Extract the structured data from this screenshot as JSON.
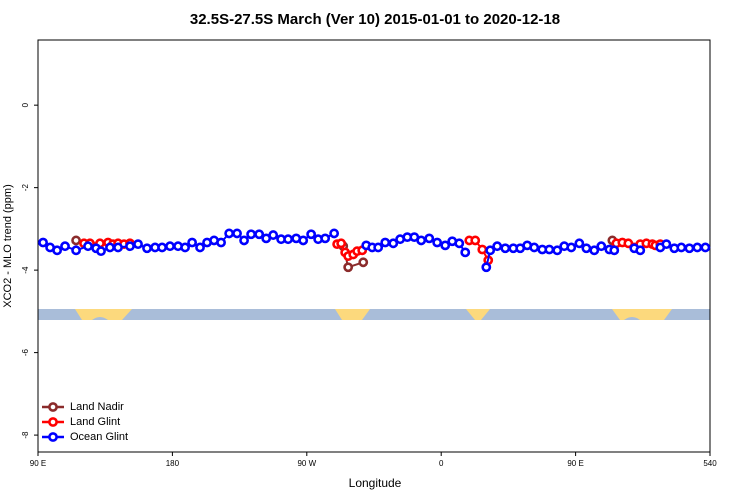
{
  "chart_data": {
    "type": "line",
    "title": "32.5S-27.5S March (Ver 10)   2015-01-01 to 2020-12-18",
    "x_label": "Longitude",
    "y_label": "XCO2 - MLO trend (ppm)",
    "xlim": [
      90,
      540
    ],
    "ylim": [
      -8.41,
      1.58
    ],
    "xticks": [
      {
        "value": 90,
        "label": "90 E"
      },
      180,
      {
        "value": 270,
        "label": "90 W"
      },
      {
        "value": 360,
        "label": "0"
      },
      {
        "value": 450,
        "label": "90 E"
      },
      540
    ],
    "yticks": [
      0,
      -2,
      -4,
      -6,
      -8
    ],
    "legend": "bottom-left",
    "series": [
      {
        "name": "Land Nadir",
        "color": "#8b2b2b",
        "x": [
          115.5,
          null,
          294.4,
          297.7,
          307.8,
          null,
          474.6
        ],
        "values": [
          -3.28,
          null,
          -3.42,
          -3.93,
          -3.81,
          null,
          -3.28
        ]
      },
      {
        "name": "Land Glint",
        "color": "#ff0000",
        "x": [
          120.8,
          124.8,
          131.5,
          136.9,
          140.2,
          143.6,
          147.6,
          151.6,
          null,
          290.3,
          293.0,
          295.7,
          297.7,
          301.1,
          303.7,
          307.1,
          null,
          378.8,
          382.8,
          387.5,
          391.5,
          null,
          477.3,
          481.3,
          485.3,
          493.3,
          497.4,
          501.4,
          503.4,
          506.7
        ],
        "values": [
          -3.35,
          -3.35,
          -3.35,
          -3.33,
          -3.37,
          -3.35,
          -3.37,
          -3.35,
          null,
          -3.37,
          -3.35,
          -3.57,
          -3.66,
          -3.62,
          -3.54,
          -3.52,
          null,
          -3.28,
          -3.28,
          -3.5,
          -3.76,
          null,
          -3.35,
          -3.33,
          -3.35,
          -3.37,
          -3.35,
          -3.37,
          -3.4,
          -3.37
        ]
      },
      {
        "name": "Ocean Glint",
        "color": "#0000ff",
        "x": [
          93.4,
          98.1,
          102.8,
          108.1,
          115.5,
          123.5,
          128.9,
          132.2,
          138.2,
          143.6,
          151.6,
          157.0,
          163.0,
          168.4,
          173.1,
          178.4,
          183.8,
          188.5,
          193.2,
          198.5,
          203.2,
          207.9,
          212.6,
          218.0,
          223.3,
          228.0,
          232.7,
          238.1,
          242.8,
          247.5,
          252.8,
          257.5,
          262.9,
          267.6,
          272.9,
          277.6,
          282.3,
          288.3,
          null,
          309.8,
          313.8,
          317.8,
          322.5,
          327.9,
          332.5,
          337.3,
          342.0,
          346.6,
          352.0,
          357.3,
          362.7,
          367.4,
          372.1,
          376.1,
          null,
          390.2,
          392.8,
          397.5,
          402.9,
          408.3,
          412.9,
          417.6,
          422.3,
          427.7,
          432.4,
          437.7,
          442.4,
          447.1,
          452.5,
          457.2,
          462.5,
          467.2,
          472.6,
          475.9,
          null,
          489.3,
          493.3,
          null,
          506.7,
          510.8,
          516.1,
          520.8,
          526.2,
          531.5,
          536.9
        ],
        "values": [
          -3.33,
          -3.45,
          -3.52,
          -3.42,
          -3.52,
          -3.42,
          -3.47,
          -3.54,
          -3.45,
          -3.45,
          -3.42,
          -3.37,
          -3.47,
          -3.45,
          -3.45,
          -3.42,
          -3.42,
          -3.45,
          -3.33,
          -3.45,
          -3.33,
          -3.28,
          -3.33,
          -3.11,
          -3.11,
          -3.28,
          -3.13,
          -3.13,
          -3.23,
          -3.15,
          -3.25,
          -3.25,
          -3.23,
          -3.28,
          -3.13,
          -3.25,
          -3.23,
          -3.11,
          null,
          -3.4,
          -3.45,
          -3.45,
          -3.33,
          -3.35,
          -3.25,
          -3.2,
          -3.2,
          -3.28,
          -3.23,
          -3.33,
          -3.4,
          -3.3,
          -3.35,
          -3.57,
          null,
          -3.93,
          -3.52,
          -3.42,
          -3.47,
          -3.47,
          -3.47,
          -3.4,
          -3.45,
          -3.5,
          -3.5,
          -3.52,
          -3.42,
          -3.45,
          -3.35,
          -3.47,
          -3.52,
          -3.42,
          -3.5,
          -3.52,
          null,
          -3.47,
          -3.52,
          null,
          -3.45,
          -3.37,
          -3.47,
          -3.45,
          -3.47,
          -3.45,
          -3.45
        ]
      }
    ]
  }
}
